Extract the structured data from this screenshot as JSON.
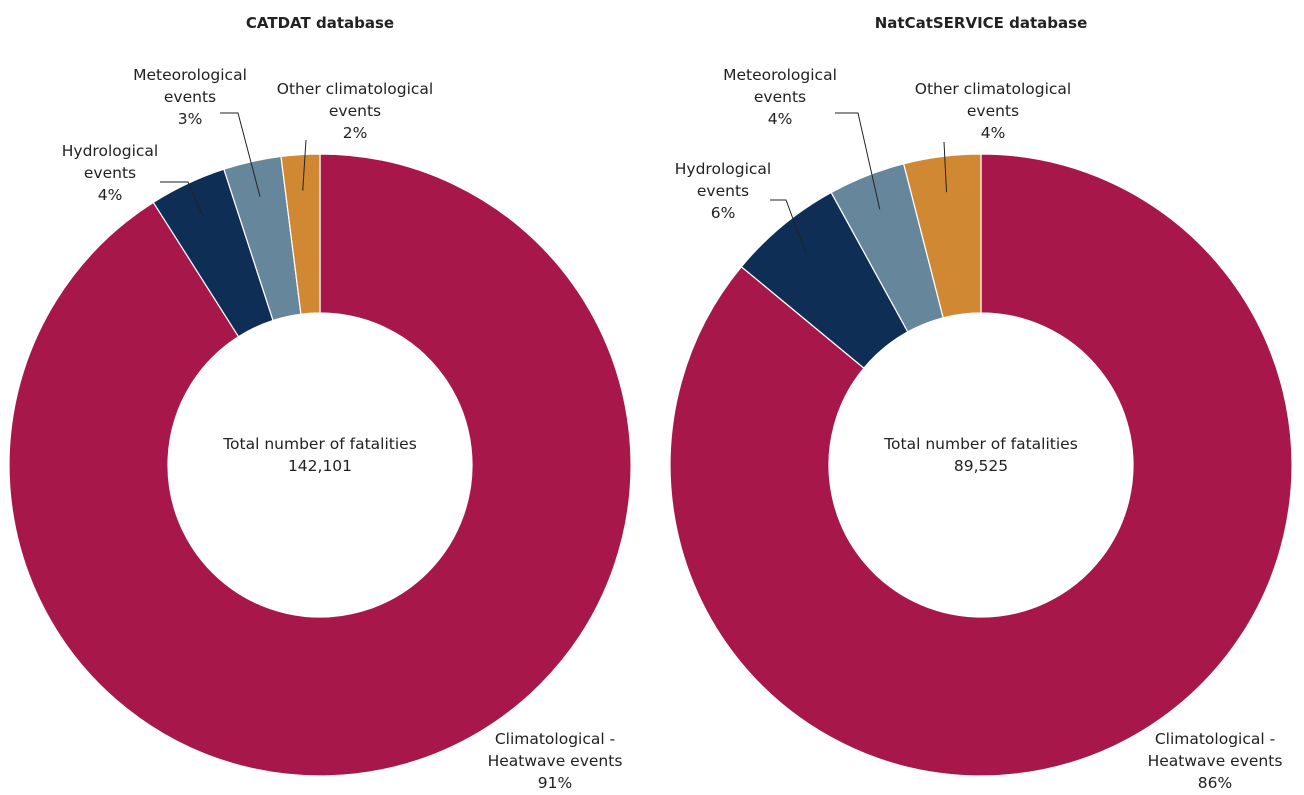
{
  "chart_data": [
    {
      "type": "pie",
      "title": "CATDAT database",
      "categories": [
        "Climatological - Heatwave events",
        "Hydrological events",
        "Meteorological events",
        "Other climatological events"
      ],
      "values": [
        91,
        4,
        3,
        2
      ],
      "value_labels": [
        "91%",
        "4%",
        "3%",
        "2%"
      ],
      "colors": [
        "#a8174a",
        "#0e2e55",
        "#66869c",
        "#d08833"
      ],
      "center_text": "Total number of fatalities",
      "center_value": "142,101"
    },
    {
      "type": "pie",
      "title": "NatCatSERVICE database",
      "categories": [
        "Climatological - Heatwave events",
        "Hydrological events",
        "Meteorological events",
        "Other climatological events"
      ],
      "values": [
        86,
        6,
        4,
        4
      ],
      "value_labels": [
        "86%",
        "6%",
        "4%",
        "4%"
      ],
      "colors": [
        "#a8174a",
        "#0e2e55",
        "#66869c",
        "#d08833"
      ],
      "center_text": "Total number of fatalities",
      "center_value": "89,525"
    }
  ]
}
